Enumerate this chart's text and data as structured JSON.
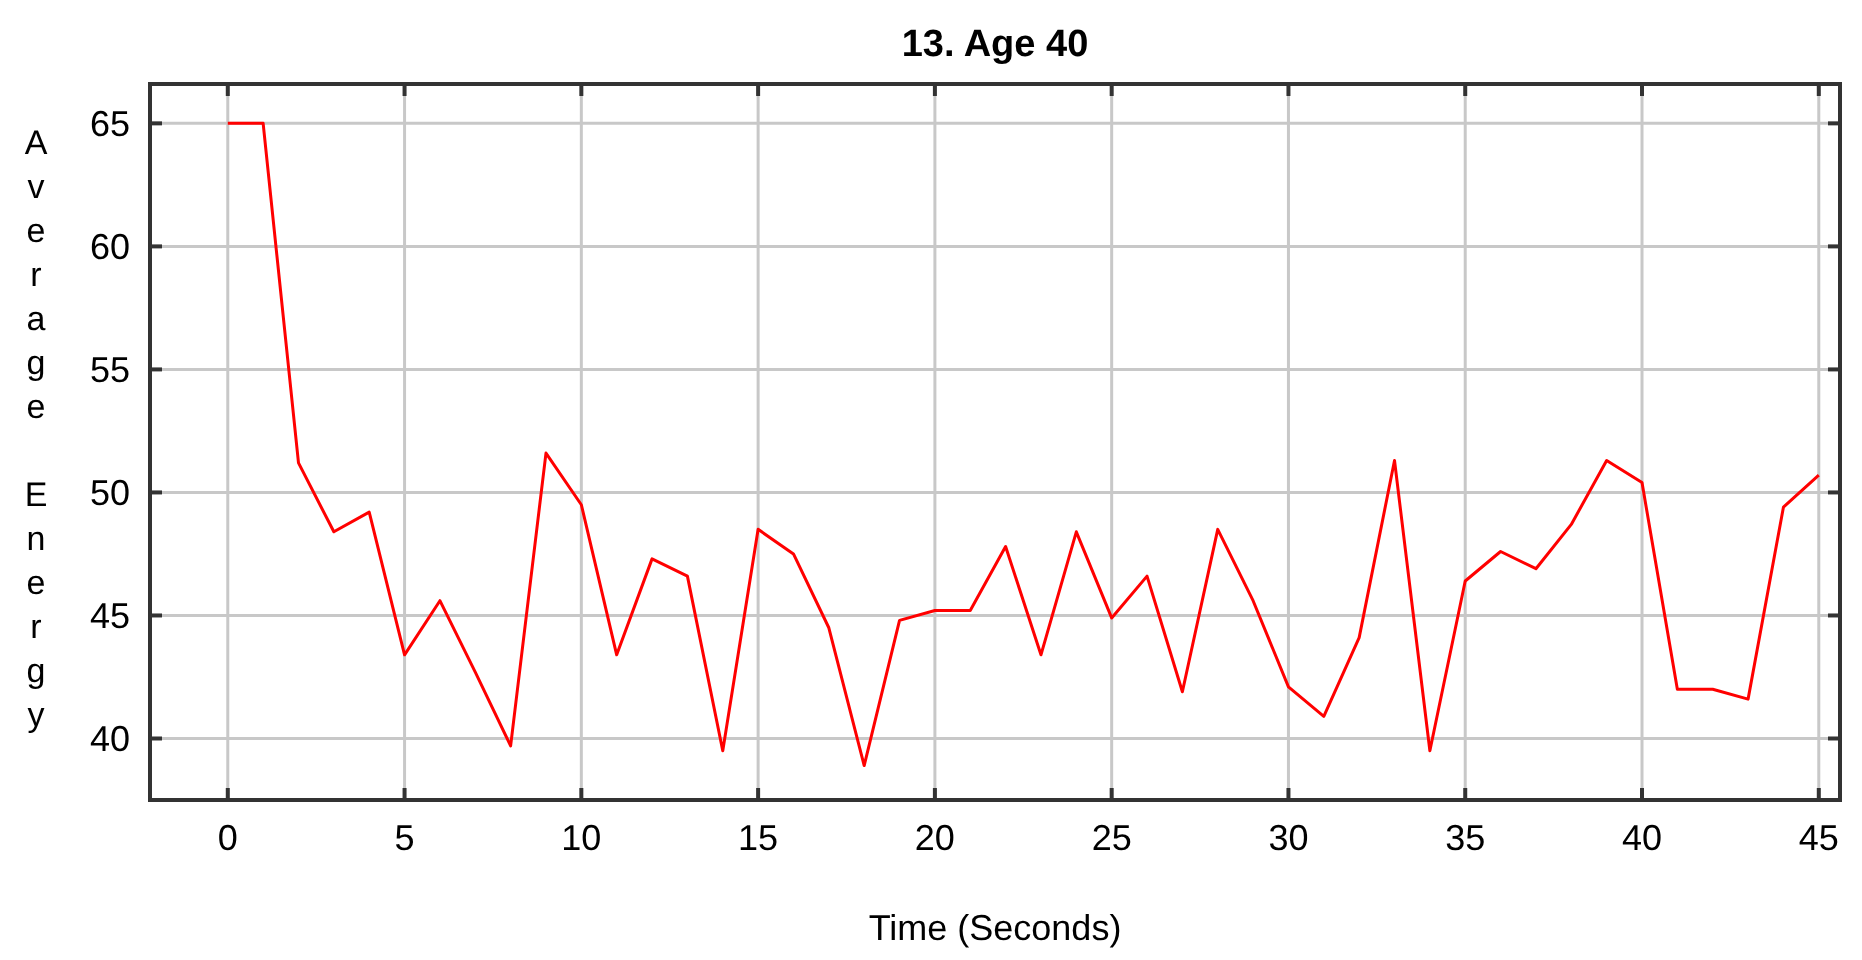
{
  "chart_data": {
    "type": "line",
    "title": "13. Age 40",
    "xlabel": "Time (Seconds)",
    "ylabel": "Average Energy",
    "x": [
      0,
      1,
      2,
      3,
      4,
      5,
      6,
      7,
      8,
      9,
      10,
      11,
      12,
      13,
      14,
      15,
      16,
      17,
      18,
      19,
      20,
      21,
      22,
      23,
      24,
      25,
      26,
      27,
      28,
      29,
      30,
      31,
      32,
      33,
      34,
      35,
      36,
      37,
      38,
      39,
      40,
      41,
      42,
      43,
      44,
      45
    ],
    "series": [
      {
        "color": "#ff0000",
        "values": [
          65,
          65,
          51.2,
          48.4,
          49.2,
          43.4,
          45.6,
          42.7,
          39.7,
          51.6,
          49.5,
          43.4,
          47.3,
          46.6,
          39.5,
          48.5,
          47.5,
          44.5,
          38.9,
          44.8,
          45.2,
          45.2,
          47.8,
          43.4,
          48.4,
          44.9,
          46.6,
          41.9,
          48.5,
          45.6,
          42.1,
          40.9,
          44.1,
          51.3,
          39.5,
          46.4,
          47.6,
          46.9,
          48.7,
          51.3,
          50.4,
          42.0,
          42.0,
          41.6,
          49.4,
          50.7
        ]
      }
    ],
    "xlim": [
      -2.2,
      45.6
    ],
    "ylim": [
      37.5,
      66.6
    ],
    "xticks": [
      0,
      5,
      10,
      15,
      20,
      25,
      30,
      35,
      40,
      45
    ],
    "yticks": [
      40,
      45,
      50,
      55,
      60,
      65
    ],
    "grid": true,
    "marker": "none",
    "line_style": "solid"
  }
}
